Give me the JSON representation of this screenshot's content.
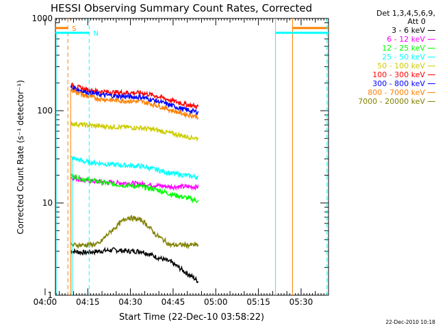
{
  "chart_data": {
    "type": "line",
    "title": "HESSI Observing Summary Count Rates, Corrected",
    "xlabel": "Start Time (22-Dec-10 03:58:22)",
    "ylabel": "Corrected Count Rate (s⁻¹ detector⁻¹)",
    "y_scale": "log",
    "ylim": [
      1,
      1000
    ],
    "xlim_minutes": [
      3.633,
      99.633
    ],
    "x_ticks": [
      {
        "label": "04:00",
        "minute": 0
      },
      {
        "label": "04:15",
        "minute": 15
      },
      {
        "label": "04:30",
        "minute": 30
      },
      {
        "label": "04:45",
        "minute": 45
      },
      {
        "label": "05:00",
        "minute": 60
      },
      {
        "label": "05:15",
        "minute": 75
      },
      {
        "label": "05:30",
        "minute": 90
      }
    ],
    "y_ticks": [
      {
        "label": "1",
        "value": 1
      },
      {
        "label": "10",
        "value": 10
      },
      {
        "label": "100",
        "value": 100
      },
      {
        "label": "1000",
        "value": 1000
      }
    ],
    "series": [
      {
        "name": "3 - 6 keV",
        "color": "#000000",
        "x": [
          9,
          14,
          19,
          24,
          29,
          34,
          39,
          44,
          49,
          54
        ],
        "y": [
          3.0,
          2.9,
          3.0,
          3.1,
          3.0,
          3.0,
          2.6,
          2.3,
          1.8,
          1.4
        ]
      },
      {
        "name": "6 - 12 keV",
        "color": "#ff00ff",
        "x": [
          9,
          14,
          19,
          24,
          29,
          34,
          39,
          44,
          49,
          54
        ],
        "y": [
          19,
          17.5,
          17,
          16.5,
          16.5,
          16,
          15.5,
          15,
          15,
          15
        ]
      },
      {
        "name": "12 - 25 keV",
        "color": "#00ff00",
        "x": [
          9,
          14,
          19,
          24,
          29,
          34,
          39,
          44,
          49,
          54
        ],
        "y": [
          20,
          18,
          17,
          16,
          15.5,
          15,
          14,
          12.5,
          11.5,
          10.5
        ]
      },
      {
        "name": "25 - 50 keV",
        "color": "#00ffff",
        "x": [
          9,
          14,
          19,
          24,
          29,
          34,
          39,
          44,
          49,
          54
        ],
        "y": [
          31,
          28,
          27,
          26,
          25.5,
          25,
          23,
          21,
          20,
          19
        ]
      },
      {
        "name": "50 - 100 keV",
        "color": "#cccc00",
        "x": [
          9,
          14,
          19,
          24,
          29,
          34,
          39,
          44,
          49,
          54
        ],
        "y": [
          73,
          70,
          68,
          67,
          66,
          65,
          62,
          57,
          53,
          50
        ]
      },
      {
        "name": "100 - 300 keV",
        "color": "#ff0000",
        "x": [
          9,
          14,
          19,
          24,
          29,
          34,
          39,
          44,
          49,
          54
        ],
        "y": [
          190,
          170,
          162,
          158,
          157,
          156,
          145,
          130,
          118,
          110
        ]
      },
      {
        "name": "300 - 800 keV",
        "color": "#0000ff",
        "x": [
          9,
          14,
          19,
          24,
          29,
          34,
          39,
          44,
          49,
          54
        ],
        "y": [
          180,
          160,
          150,
          145,
          142,
          140,
          128,
          115,
          103,
          96
        ]
      },
      {
        "name": "800 - 7000 keV",
        "color": "#ff8000",
        "x": [
          9,
          14,
          19,
          24,
          29,
          34,
          39,
          44,
          49,
          54
        ],
        "y": [
          170,
          145,
          135,
          130,
          128,
          125,
          115,
          102,
          92,
          86
        ]
      },
      {
        "name": "7000 - 20000 keV",
        "color": "#808000",
        "x": [
          9,
          14,
          19,
          24,
          29,
          34,
          39,
          44,
          49,
          54
        ],
        "y": [
          3.5,
          3.5,
          3.6,
          5.2,
          7.0,
          6.5,
          4.5,
          3.5,
          3.5,
          3.5
        ]
      }
    ],
    "markers": [
      {
        "label": "S",
        "color": "#ff8000",
        "bar_start_minute": 3.633,
        "bar_end_minute": 8,
        "dashed_line_minute": 8,
        "solid_line_minute": 87,
        "bar2_start_minute": 87,
        "bar2_end_minute": 99.633
      },
      {
        "label": "N",
        "color": "#00ffff",
        "bar_start_minute": 3.633,
        "bar_end_minute": 15.5,
        "dashed_line_minute": 15.5,
        "solid_line_minute": 81,
        "bar2_start_minute": 81,
        "bar2_end_minute": 99.633
      }
    ],
    "data_start_minute": 9,
    "data_end_minute": 54
  },
  "legend": {
    "header_line1": "Det 1,3,4,5,6,9,",
    "header_line2": "Att 0"
  },
  "footer_text": "22-Dec-2010 10:18"
}
